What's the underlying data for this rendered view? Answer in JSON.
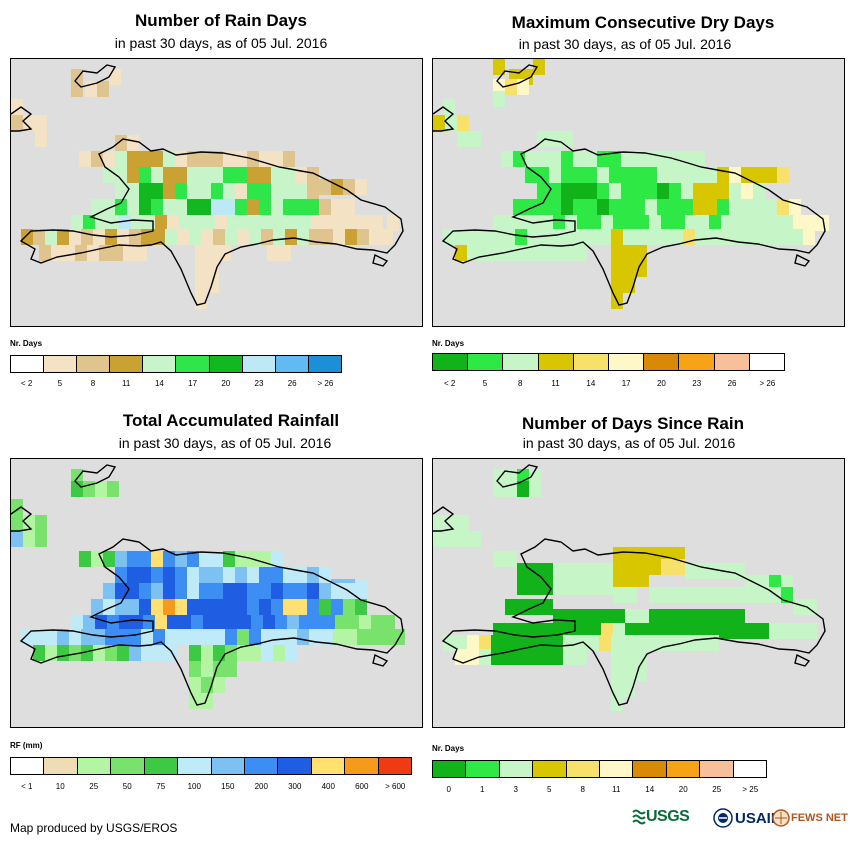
{
  "panels": [
    {
      "title": "Number of Rain Days",
      "subtitle": "in past 30 days, as of 05 Jul. 2016",
      "legend": {
        "title": "Nr. Days",
        "labels": [
          "< 2",
          "5",
          "8",
          "11",
          "14",
          "17",
          "20",
          "23",
          "26",
          "> 26"
        ],
        "colors": [
          "#ffffff",
          "#f3e2c4",
          "#dfc48e",
          "#c9a233",
          "#c7f5c9",
          "#2fe64a",
          "#11b820",
          "#bde9f7",
          "#62baf2",
          "#1c8fd6"
        ]
      }
    },
    {
      "title": "Maximum Consecutive Dry Days",
      "subtitle": "in past 30 days, as of 05 Jul. 2016",
      "legend": {
        "title": "Nr. Days",
        "labels": [
          "< 2",
          "5",
          "8",
          "11",
          "14",
          "17",
          "20",
          "23",
          "26",
          "> 26"
        ],
        "colors": [
          "#12b31a",
          "#2ee846",
          "#c6f5c8",
          "#d7c600",
          "#f7e16a",
          "#fef8c8",
          "#d88a07",
          "#f6a316",
          "#f8c09a",
          "#ffffff"
        ]
      }
    },
    {
      "title": "Total Accumulated Rainfall",
      "subtitle": "in past 30 days, as of 05 Jul. 2016",
      "legend": {
        "title": "RF (mm)",
        "labels": [
          "< 1",
          "10",
          "25",
          "50",
          "75",
          "100",
          "150",
          "200",
          "300",
          "400",
          "600",
          "> 600"
        ],
        "colors": [
          "#ffffff",
          "#f0dcb4",
          "#b4f5a4",
          "#78e26c",
          "#3ec944",
          "#bfeaf8",
          "#7cc1f2",
          "#3c8ef2",
          "#1f5ee2",
          "#ffe070",
          "#f59a1a",
          "#ef3a12"
        ]
      }
    },
    {
      "title": "Number of Days Since Rain",
      "subtitle": "in past 30 days, as of 05 Jul. 2016",
      "legend": {
        "title": "Nr. Days",
        "labels": [
          "0",
          "1",
          "3",
          "5",
          "8",
          "11",
          "14",
          "20",
          "25",
          "> 25"
        ],
        "colors": [
          "#12b31a",
          "#2ee846",
          "#c6f5c8",
          "#d7c600",
          "#f7e16a",
          "#fef8c8",
          "#d88a07",
          "#f6a316",
          "#f8c09a",
          "#ffffff"
        ]
      }
    }
  ],
  "footer": "Map produced by USGS/EROS",
  "logos": {
    "usgs": "USGS",
    "usaid": "USAID",
    "fewsnet": "FEWS NET"
  }
}
